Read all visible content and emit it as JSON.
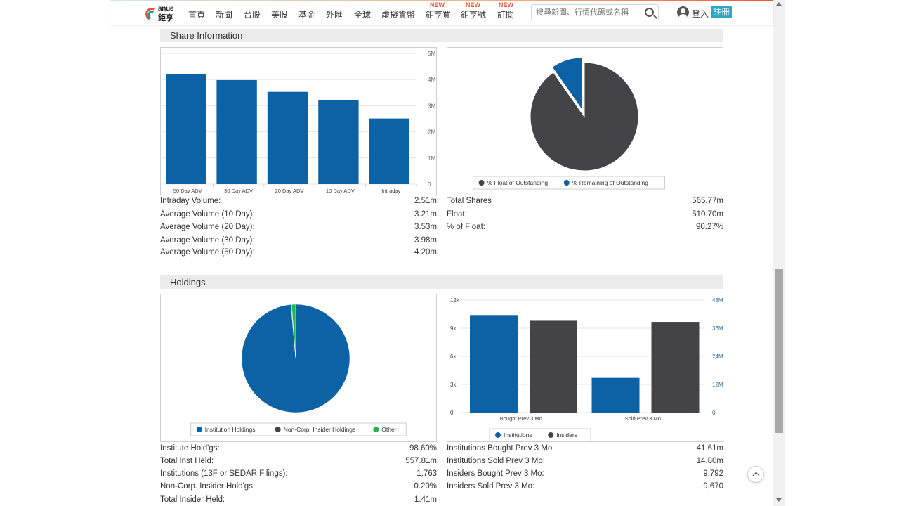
{
  "header": {
    "logo_en": "anue",
    "logo_zh": "鉅亨",
    "nav": [
      "首頁",
      "新聞",
      "台股",
      "美股",
      "基金",
      "外匯",
      "全球",
      "虛擬貨幣",
      "鉅亨買",
      "鉅亨號",
      "訂閱"
    ],
    "new_badge": "NEW",
    "search_placeholder": "搜尋新聞、行情代碼或名稱",
    "login": "登入",
    "register": "註冊"
  },
  "share_information": {
    "title": "Share Information",
    "volume_stats": [
      {
        "label": "Intraday Volume:",
        "value": "2.51m"
      },
      {
        "label": "Average Volume (10 Day):",
        "value": "3.21m"
      },
      {
        "label": "Average Volume (20 Day):",
        "value": "3.53m"
      },
      {
        "label": "Average Volume (30 Day):",
        "value": "3.98m"
      },
      {
        "label": "Average Volume (50 Day):",
        "value": "4.20m"
      }
    ],
    "float_stats": [
      {
        "label": "Total Shares",
        "value": "565.77m"
      },
      {
        "label": "Float:",
        "value": "510.70m"
      },
      {
        "label": "% of Float:",
        "value": "90.27%"
      }
    ]
  },
  "holdings": {
    "title": "Holdings",
    "holding_stats": [
      {
        "label": "Institute Hold'gs:",
        "value": "98.60%"
      },
      {
        "label": "Total Inst Held:",
        "value": "557.81m"
      },
      {
        "label": "Institutions (13F or SEDAR Filings):",
        "value": "1,763"
      },
      {
        "label": "Non-Corp. Insider Hold'gs:",
        "value": "0.20%"
      },
      {
        "label": "Total Insider Held:",
        "value": "1.41m"
      }
    ],
    "activity_stats": [
      {
        "label": "Institutions Bought Prev 3 Mo",
        "value": "41.61m"
      },
      {
        "label": "Institutions Sold Prev 3 Mo:",
        "value": "14.80m"
      },
      {
        "label": "Insiders Bought Prev 3 Mo:",
        "value": "9,792"
      },
      {
        "label": "Insiders Sold Prev 3 Mo:",
        "value": "9,670"
      }
    ]
  },
  "colors": {
    "blue": "#0d62a6",
    "dark": "#434348",
    "green": "#22b84b"
  },
  "chart_data": [
    {
      "type": "bar",
      "categories": [
        "50 Day ADV",
        "30 Day ADV",
        "20 Day ADV",
        "10 Day ADV",
        "Intraday"
      ],
      "values": [
        4.2,
        3.98,
        3.53,
        3.21,
        2.51
      ],
      "yticks": [
        "0",
        "1M",
        "2M",
        "3M",
        "4M",
        "5M"
      ],
      "ylim": [
        0,
        5
      ],
      "axis_side": "right"
    },
    {
      "type": "pie",
      "slices": [
        {
          "name": "% Float of Outstanding",
          "value": 90.27,
          "color": "#434348"
        },
        {
          "name": "% Remaining of Outstanding",
          "value": 9.73,
          "color": "#0d62a6"
        }
      ],
      "legend": "bottom"
    },
    {
      "type": "pie",
      "slices": [
        {
          "name": "Institution Holdings",
          "value": 98.6,
          "color": "#0d62a6"
        },
        {
          "name": "Non-Corp. Insider Holdings",
          "value": 0.2,
          "color": "#434348"
        },
        {
          "name": "Other",
          "value": 1.2,
          "color": "#22b84b"
        }
      ],
      "legend": "bottom"
    },
    {
      "type": "bar",
      "categories": [
        "Bought Prev 3 Mo",
        "Sold Prev 3 Mo"
      ],
      "series": [
        {
          "name": "Institutions",
          "axis": "right",
          "values": [
            41.61,
            14.8
          ],
          "color": "#0d62a6"
        },
        {
          "name": "Insiders",
          "axis": "left",
          "values": [
            9792,
            9670
          ],
          "color": "#434348"
        }
      ],
      "yticks_left": [
        "0",
        "3k",
        "6k",
        "9k",
        "12k"
      ],
      "ylim_left": [
        0,
        12000
      ],
      "yticks_right": [
        "0",
        "12M",
        "24M",
        "36M",
        "48M"
      ],
      "ylim_right": [
        0,
        48
      ],
      "legend": "bottom"
    }
  ]
}
